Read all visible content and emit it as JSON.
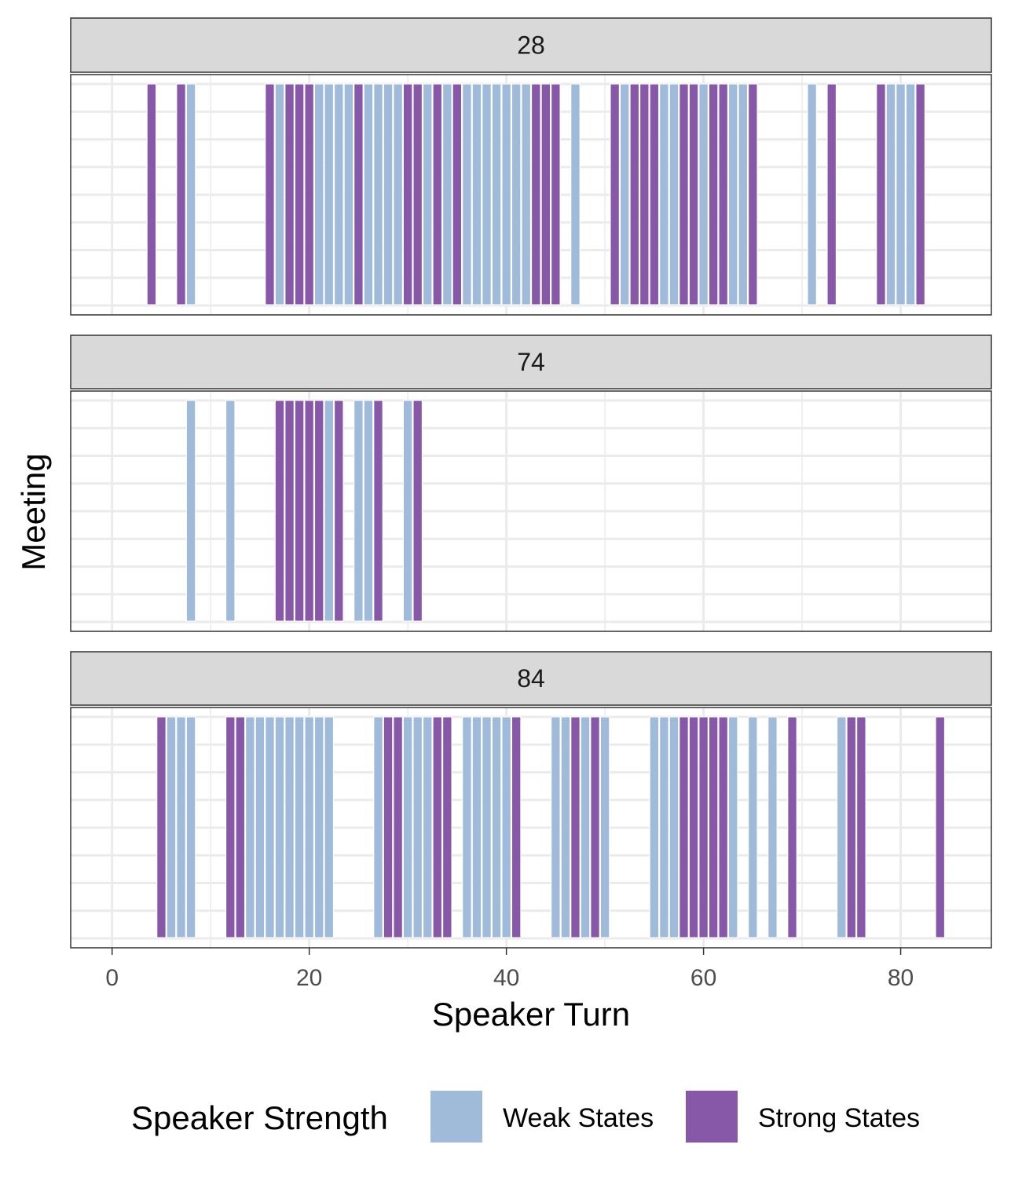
{
  "chart_data": {
    "type": "bar",
    "xlabel": "Speaker Turn",
    "ylabel": "Meeting",
    "xlim": [
      -4.2,
      89.2
    ],
    "xticks": [
      0,
      20,
      40,
      60,
      80
    ],
    "grid": true,
    "legend_position": "bottom",
    "legend_title": "Speaker Strength",
    "colors": {
      "weak": "#a0bbd9",
      "strong": "#8858a8"
    },
    "legend": [
      {
        "key": "weak",
        "label": "Weak States"
      },
      {
        "key": "strong",
        "label": "Strong States"
      }
    ],
    "facets": [
      {
        "label": "28",
        "weak": [
          8,
          17,
          21,
          22,
          23,
          24,
          26,
          27,
          28,
          29,
          32,
          34,
          36,
          37,
          38,
          39,
          40,
          41,
          42,
          47,
          52,
          56,
          57,
          60,
          63,
          64,
          71,
          79,
          80,
          81
        ],
        "strong": [
          4,
          7,
          16,
          18,
          19,
          20,
          25,
          30,
          31,
          33,
          35,
          43,
          44,
          45,
          51,
          53,
          54,
          55,
          58,
          59,
          61,
          62,
          65,
          73,
          78,
          82
        ]
      },
      {
        "label": "74",
        "weak": [
          8,
          12,
          22,
          25,
          26,
          30
        ],
        "strong": [
          17,
          18,
          19,
          20,
          21,
          23,
          27,
          31
        ]
      },
      {
        "label": "84",
        "weak": [
          6,
          7,
          8,
          14,
          15,
          16,
          17,
          18,
          19,
          20,
          21,
          22,
          27,
          30,
          31,
          32,
          36,
          37,
          38,
          39,
          40,
          45,
          46,
          48,
          50,
          55,
          56,
          57,
          63,
          65,
          67,
          74
        ],
        "strong": [
          5,
          12,
          13,
          28,
          29,
          33,
          34,
          41,
          47,
          49,
          58,
          59,
          60,
          61,
          62,
          69,
          75,
          76,
          84
        ]
      }
    ]
  }
}
